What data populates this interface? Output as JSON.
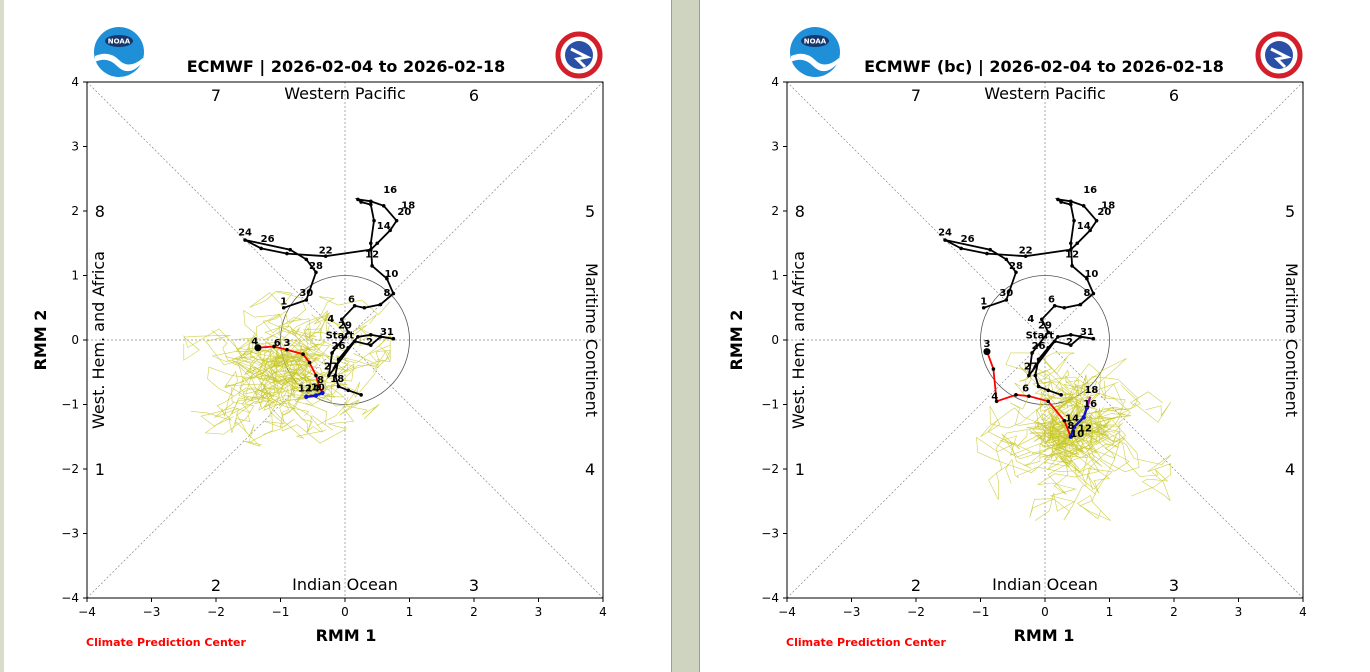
{
  "credit": "Climate Prediction Center",
  "logos": {
    "left": "NOAA",
    "right": "NATIONAL WEATHER SERVICE"
  },
  "colors": {
    "black_track": "#000000",
    "red_track": "#ff0000",
    "blue_track": "#1010d0",
    "purple_track": "#9a1ab0",
    "ensemble": "#c8c82a",
    "credit": "#ff0000"
  },
  "chart_data": [
    {
      "type": "line",
      "title": "ECMWF | 2026-02-04 to 2026-02-18",
      "xlabel": "RMM 1",
      "ylabel": "RMM 2",
      "xlim": [
        -4,
        4
      ],
      "ylim": [
        -4,
        4
      ],
      "xticks": [
        "−4",
        "−3",
        "−2",
        "−1",
        "0",
        "1",
        "2",
        "3",
        "4"
      ],
      "yticks": [
        "−4",
        "−3",
        "−2",
        "−1",
        "0",
        "1",
        "2",
        "3",
        "4"
      ],
      "region_labels": {
        "top": "Western Pacific",
        "bottom": "Indian Ocean",
        "left": "West. Hem. and Africa",
        "right": "Maritime Continent"
      },
      "phase_labels": [
        {
          "phase": "7",
          "x": -2.0,
          "y": 3.8
        },
        {
          "phase": "6",
          "x": 2.0,
          "y": 3.8
        },
        {
          "phase": "8",
          "x": -3.8,
          "y": 2.0
        },
        {
          "phase": "5",
          "x": 3.8,
          "y": 2.0
        },
        {
          "phase": "1",
          "x": -3.8,
          "y": -2.0
        },
        {
          "phase": "4",
          "x": 3.8,
          "y": -2.0
        },
        {
          "phase": "2",
          "x": -2.0,
          "y": -3.8
        },
        {
          "phase": "3",
          "x": 2.0,
          "y": -3.8
        }
      ],
      "observed": {
        "points": [
          [
            -0.95,
            0.5
          ],
          [
            -0.6,
            0.62
          ],
          [
            -0.45,
            1.05
          ],
          [
            -0.6,
            1.25
          ],
          [
            -0.85,
            1.4
          ],
          [
            -1.55,
            1.55
          ],
          [
            -1.3,
            1.42
          ],
          [
            -0.9,
            1.34
          ],
          [
            -0.3,
            1.3
          ],
          [
            0.4,
            1.4
          ],
          [
            0.5,
            1.5
          ],
          [
            0.7,
            1.7
          ],
          [
            0.8,
            1.85
          ],
          [
            0.6,
            2.08
          ],
          [
            0.4,
            2.15
          ],
          [
            0.2,
            2.18
          ],
          [
            0.25,
            2.14
          ],
          [
            0.4,
            2.1
          ],
          [
            0.45,
            1.85
          ],
          [
            0.4,
            1.5
          ],
          [
            0.42,
            1.15
          ],
          [
            0.65,
            0.95
          ],
          [
            0.75,
            0.72
          ],
          [
            0.55,
            0.55
          ],
          [
            0.3,
            0.5
          ],
          [
            0.15,
            0.53
          ],
          [
            -0.05,
            0.32
          ],
          [
            0.05,
            0.12
          ],
          [
            -0.2,
            -0.2
          ],
          [
            -0.25,
            -0.55
          ],
          [
            0.15,
            -0.02
          ],
          [
            0.4,
            -0.08
          ],
          [
            0.55,
            0.05
          ],
          [
            0.75,
            0.02
          ],
          [
            0.4,
            0.08
          ],
          [
            0.2,
            0.05
          ],
          [
            0.05,
            -0.12
          ],
          [
            -0.1,
            -0.3
          ],
          [
            -0.15,
            -0.55
          ],
          [
            -0.1,
            -0.72
          ],
          [
            0.05,
            -0.78
          ],
          [
            0.25,
            -0.85
          ]
        ],
        "labels": [
          {
            "t": "1",
            "x": -0.95,
            "y": 0.55
          },
          {
            "t": "30",
            "x": -0.6,
            "y": 0.68
          },
          {
            "t": "28",
            "x": -0.45,
            "y": 1.1
          },
          {
            "t": "26",
            "x": -1.2,
            "y": 1.52
          },
          {
            "t": "24",
            "x": -1.55,
            "y": 1.62
          },
          {
            "t": "22",
            "x": -0.3,
            "y": 1.34
          },
          {
            "t": "16",
            "x": 0.7,
            "y": 2.28
          },
          {
            "t": "18",
            "x": 0.98,
            "y": 2.04
          },
          {
            "t": "20",
            "x": 0.92,
            "y": 1.94
          },
          {
            "t": "14",
            "x": 0.6,
            "y": 1.72
          },
          {
            "t": "12",
            "x": 0.42,
            "y": 1.28
          },
          {
            "t": "10",
            "x": 0.72,
            "y": 0.98
          },
          {
            "t": "8",
            "x": 0.65,
            "y": 0.68
          },
          {
            "t": "6",
            "x": 0.1,
            "y": 0.58
          },
          {
            "t": "4",
            "x": -0.22,
            "y": 0.28
          },
          {
            "t": "29",
            "x": 0.0,
            "y": 0.18
          },
          {
            "t": "Start",
            "x": -0.08,
            "y": 0.02
          },
          {
            "t": "31",
            "x": 0.65,
            "y": 0.08
          },
          {
            "t": "2",
            "x": 0.38,
            "y": -0.08
          },
          {
            "t": "26",
            "x": -0.1,
            "y": -0.14
          },
          {
            "t": "27",
            "x": -0.22,
            "y": -0.46
          },
          {
            "t": "18",
            "x": -0.12,
            "y": -0.65
          }
        ]
      },
      "forecast_mean": {
        "red": [
          [
            -1.35,
            -0.12
          ],
          [
            -1.1,
            -0.1
          ],
          [
            -0.9,
            -0.15
          ],
          [
            -0.65,
            -0.22
          ],
          [
            -0.55,
            -0.35
          ],
          [
            -0.45,
            -0.55
          ],
          [
            -0.4,
            -0.72
          ],
          [
            -0.35,
            -0.82
          ]
        ],
        "blue": [
          [
            -0.35,
            -0.82
          ],
          [
            -0.45,
            -0.86
          ],
          [
            -0.6,
            -0.88
          ]
        ],
        "labels": [
          {
            "t": "4",
            "x": -1.4,
            "y": -0.07
          },
          {
            "t": "6",
            "x": -1.05,
            "y": -0.09
          },
          {
            "t": "3",
            "x": -0.9,
            "y": -0.09
          },
          {
            "t": "8",
            "x": -0.38,
            "y": -0.67
          },
          {
            "t": "10",
            "x": -0.42,
            "y": -0.78
          },
          {
            "t": "12",
            "x": -0.62,
            "y": -0.8
          },
          {
            "t": "14",
            "x": -0.5,
            "y": -0.8
          }
        ]
      },
      "ensemble": {
        "center": [
          -0.9,
          -0.45
        ],
        "spread": [
          0.9,
          0.65
        ],
        "members": 50
      }
    },
    {
      "type": "line",
      "title": "ECMWF (bc) | 2026-02-04 to 2026-02-18",
      "xlabel": "RMM 1",
      "ylabel": "RMM 2",
      "xlim": [
        -4,
        4
      ],
      "ylim": [
        -4,
        4
      ],
      "xticks": [
        "−4",
        "−3",
        "−2",
        "−1",
        "0",
        "1",
        "2",
        "3",
        "4"
      ],
      "yticks": [
        "−4",
        "−3",
        "−2",
        "−1",
        "0",
        "1",
        "2",
        "3",
        "4"
      ],
      "region_labels": {
        "top": "Western Pacific",
        "bottom": "Indian Ocean",
        "left": "West. Hem. and Africa",
        "right": "Maritime Continent"
      },
      "phase_labels": [
        {
          "phase": "7",
          "x": -2.0,
          "y": 3.8
        },
        {
          "phase": "6",
          "x": 2.0,
          "y": 3.8
        },
        {
          "phase": "8",
          "x": -3.8,
          "y": 2.0
        },
        {
          "phase": "5",
          "x": 3.8,
          "y": 2.0
        },
        {
          "phase": "1",
          "x": -3.8,
          "y": -2.0
        },
        {
          "phase": "4",
          "x": 3.8,
          "y": -2.0
        },
        {
          "phase": "2",
          "x": -2.0,
          "y": -3.8
        },
        {
          "phase": "3",
          "x": 2.0,
          "y": -3.8
        }
      ],
      "observed": {
        "points": [
          [
            -0.95,
            0.5
          ],
          [
            -0.6,
            0.62
          ],
          [
            -0.45,
            1.05
          ],
          [
            -0.6,
            1.25
          ],
          [
            -0.85,
            1.4
          ],
          [
            -1.55,
            1.55
          ],
          [
            -1.3,
            1.42
          ],
          [
            -0.9,
            1.34
          ],
          [
            -0.3,
            1.3
          ],
          [
            0.4,
            1.4
          ],
          [
            0.5,
            1.5
          ],
          [
            0.7,
            1.7
          ],
          [
            0.8,
            1.85
          ],
          [
            0.6,
            2.08
          ],
          [
            0.4,
            2.15
          ],
          [
            0.2,
            2.18
          ],
          [
            0.25,
            2.14
          ],
          [
            0.4,
            2.1
          ],
          [
            0.45,
            1.85
          ],
          [
            0.4,
            1.5
          ],
          [
            0.42,
            1.15
          ],
          [
            0.65,
            0.95
          ],
          [
            0.75,
            0.72
          ],
          [
            0.55,
            0.55
          ],
          [
            0.3,
            0.5
          ],
          [
            0.15,
            0.53
          ],
          [
            -0.05,
            0.32
          ],
          [
            0.05,
            0.12
          ],
          [
            -0.2,
            -0.2
          ],
          [
            -0.25,
            -0.55
          ],
          [
            0.15,
            -0.02
          ],
          [
            0.4,
            -0.08
          ],
          [
            0.55,
            0.05
          ],
          [
            0.75,
            0.02
          ],
          [
            0.4,
            0.08
          ],
          [
            0.2,
            0.05
          ],
          [
            0.05,
            -0.12
          ],
          [
            -0.1,
            -0.3
          ],
          [
            -0.15,
            -0.55
          ],
          [
            -0.1,
            -0.72
          ],
          [
            0.05,
            -0.78
          ],
          [
            0.25,
            -0.85
          ]
        ],
        "labels": [
          {
            "t": "1",
            "x": -0.95,
            "y": 0.55
          },
          {
            "t": "30",
            "x": -0.6,
            "y": 0.68
          },
          {
            "t": "28",
            "x": -0.45,
            "y": 1.1
          },
          {
            "t": "26",
            "x": -1.2,
            "y": 1.52
          },
          {
            "t": "24",
            "x": -1.55,
            "y": 1.62
          },
          {
            "t": "22",
            "x": -0.3,
            "y": 1.34
          },
          {
            "t": "16",
            "x": 0.7,
            "y": 2.28
          },
          {
            "t": "18",
            "x": 0.98,
            "y": 2.04
          },
          {
            "t": "20",
            "x": 0.92,
            "y": 1.94
          },
          {
            "t": "14",
            "x": 0.6,
            "y": 1.72
          },
          {
            "t": "12",
            "x": 0.42,
            "y": 1.28
          },
          {
            "t": "10",
            "x": 0.72,
            "y": 0.98
          },
          {
            "t": "8",
            "x": 0.65,
            "y": 0.68
          },
          {
            "t": "6",
            "x": 0.1,
            "y": 0.58
          },
          {
            "t": "4",
            "x": -0.22,
            "y": 0.28
          },
          {
            "t": "29",
            "x": 0.0,
            "y": 0.18
          },
          {
            "t": "Start",
            "x": -0.08,
            "y": 0.02
          },
          {
            "t": "31",
            "x": 0.65,
            "y": 0.08
          },
          {
            "t": "2",
            "x": 0.38,
            "y": -0.08
          },
          {
            "t": "26",
            "x": -0.1,
            "y": -0.14
          },
          {
            "t": "27",
            "x": -0.22,
            "y": -0.46
          }
        ]
      },
      "forecast_mean": {
        "red": [
          [
            -0.9,
            -0.18
          ],
          [
            -0.8,
            -0.45
          ],
          [
            -0.75,
            -0.95
          ],
          [
            -0.45,
            -0.85
          ],
          [
            -0.25,
            -0.87
          ],
          [
            0.05,
            -0.95
          ],
          [
            0.3,
            -1.25
          ],
          [
            0.4,
            -1.5
          ]
        ],
        "blue": [
          [
            0.4,
            -1.5
          ],
          [
            0.45,
            -1.35
          ],
          [
            0.6,
            -1.2
          ],
          [
            0.65,
            -1.05
          ]
        ],
        "purple": [
          [
            0.65,
            -1.05
          ],
          [
            0.7,
            -0.88
          ]
        ],
        "labels": [
          {
            "t": "3",
            "x": -0.9,
            "y": -0.11
          },
          {
            "t": "4",
            "x": -0.78,
            "y": -0.92
          },
          {
            "t": "6",
            "x": -0.3,
            "y": -0.8
          },
          {
            "t": "18",
            "x": 0.72,
            "y": -0.82
          },
          {
            "t": "16",
            "x": 0.7,
            "y": -1.04
          },
          {
            "t": "14",
            "x": 0.42,
            "y": -1.26
          },
          {
            "t": "12",
            "x": 0.62,
            "y": -1.42
          },
          {
            "t": "10",
            "x": 0.5,
            "y": -1.5
          },
          {
            "t": "8",
            "x": 0.4,
            "y": -1.38
          }
        ]
      },
      "ensemble": {
        "center": [
          0.35,
          -1.4
        ],
        "spread": [
          0.85,
          0.7
        ],
        "members": 50
      }
    }
  ]
}
